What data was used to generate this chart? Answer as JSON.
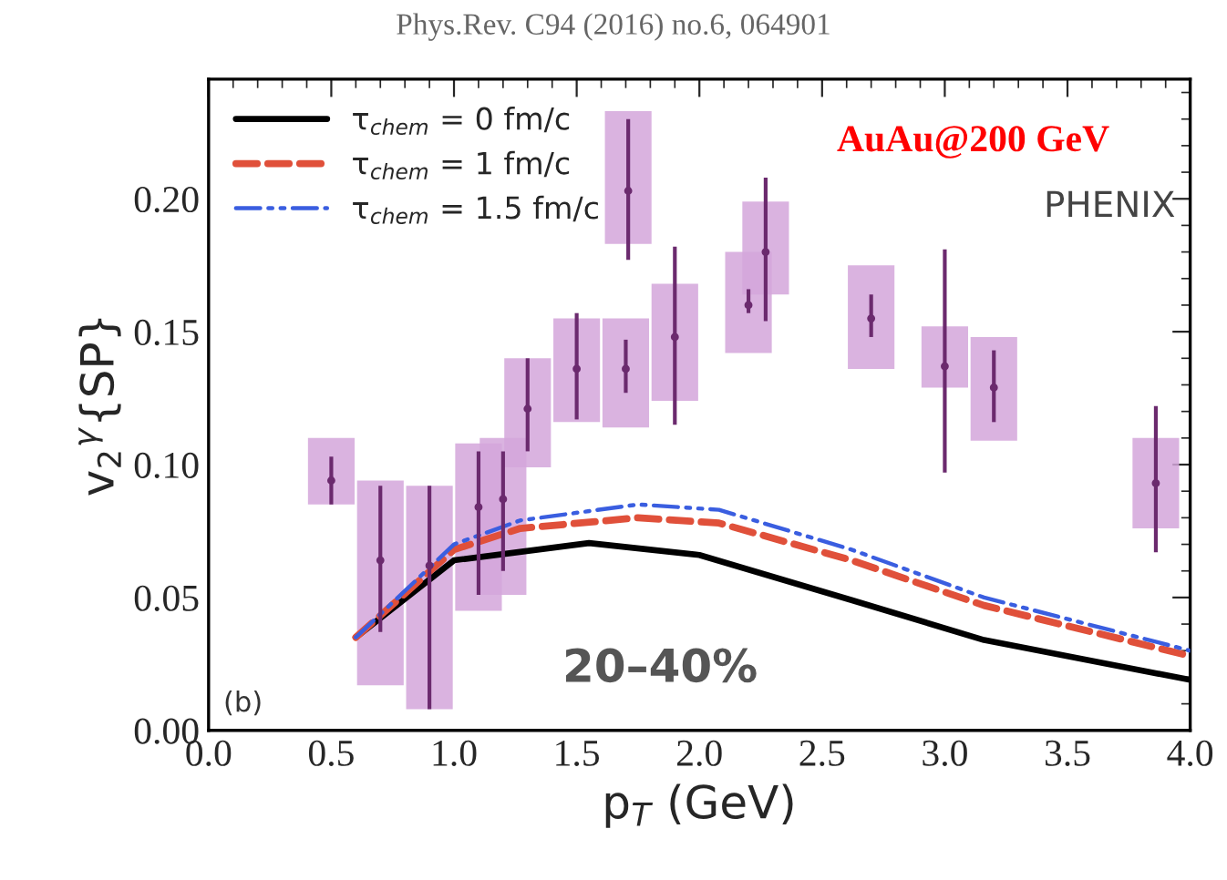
{
  "chart_data": {
    "type": "scatter",
    "xlabel": "p$_{T}$ (GeV)",
    "ylabel": "v$_{2}$$^{γ}${SP}",
    "xlim": [
      0,
      4.0
    ],
    "ylim": [
      0,
      0.245
    ],
    "xticks": [
      {
        "value": 0,
        "label": "0.0"
      },
      0.5,
      {
        "value": 1,
        "label": "1.0"
      },
      1.5,
      {
        "value": 2,
        "label": "2.0"
      },
      2.5,
      {
        "value": 3,
        "label": "3.0"
      },
      3.5,
      {
        "value": 4,
        "label": "4.0"
      }
    ],
    "yticks": [
      {
        "value": 0,
        "label": "0.00"
      },
      0.05,
      {
        "value": 0.1,
        "label": "0.10"
      },
      0.15,
      {
        "value": 0.2,
        "label": "0.20"
      }
    ],
    "legend": "top left",
    "grid": false,
    "marker": "circle",
    "annotations": [
      "Phys.Rev. C94 (2016) no.6, 064901",
      "AuAu@200 GeV",
      "PHENIX",
      "20–40%",
      "(b)"
    ],
    "series": [
      {
        "type": "bar",
        "color": "#d4a6da",
        "x": [
          0.5,
          0.7,
          0.9,
          1.1,
          1.2,
          1.3,
          1.5,
          1.7,
          1.71,
          1.9,
          2.2,
          2.27,
          2.7,
          3.0,
          3.2,
          3.86
        ],
        "base": [
          0.085,
          0.017,
          0.008,
          0.045,
          0.051,
          0.099,
          0.116,
          0.114,
          0.183,
          0.124,
          0.142,
          0.164,
          0.136,
          0.129,
          0.109,
          0.076
        ],
        "values": [
          0.025,
          0.077,
          0.084,
          0.063,
          0.059,
          0.041,
          0.039,
          0.041,
          0.05,
          0.044,
          0.038,
          0.035,
          0.039,
          0.023,
          0.039,
          0.034
        ]
      },
      {
        "color": "#6b2a6e",
        "x": [
          0.5,
          0.7,
          0.9,
          1.1,
          1.2,
          1.3,
          1.5,
          1.7,
          1.71,
          1.9,
          2.2,
          2.27,
          2.7,
          3.0,
          3.2,
          3.86
        ],
        "values": [
          0.094,
          0.064,
          0.062,
          0.084,
          0.087,
          0.121,
          0.136,
          0.136,
          0.203,
          0.148,
          0.16,
          0.18,
          0.155,
          0.137,
          0.129,
          0.093
        ],
        "errors": [
          [
            0.085,
            0.103
          ],
          [
            0.037,
            0.092
          ],
          [
            0.008,
            0.092
          ],
          [
            0.051,
            0.105
          ],
          [
            0.06,
            0.105
          ],
          [
            0.105,
            0.14
          ],
          [
            0.117,
            0.157
          ],
          [
            0.127,
            0.147
          ],
          [
            0.177,
            0.23
          ],
          [
            0.115,
            0.182
          ],
          [
            0.157,
            0.166
          ],
          [
            0.154,
            0.208
          ],
          [
            0.148,
            0.164
          ],
          [
            0.097,
            0.181
          ],
          [
            0.116,
            0.143
          ],
          [
            0.067,
            0.122
          ]
        ]
      },
      {
        "type": "line",
        "name": "τ$_{chem}$ = 0 fm/c",
        "color": "#000000",
        "line_style": "solid",
        "marker": "none",
        "x": [
          0.6,
          1.0,
          1.55,
          2.0,
          2.62,
          3.16,
          4.0
        ],
        "values": [
          0.035,
          0.064,
          0.0705,
          0.066,
          0.049,
          0.034,
          0.019
        ]
      },
      {
        "type": "line",
        "name": "τ$_{chem}$ = 1 fm/c",
        "color": "#e0503a",
        "line_style": "dashed",
        "marker": "none",
        "x": [
          0.6,
          1.0,
          1.27,
          1.75,
          2.08,
          2.62,
          3.16,
          4.0
        ],
        "values": [
          0.035,
          0.068,
          0.076,
          0.08,
          0.078,
          0.064,
          0.047,
          0.028
        ]
      },
      {
        "type": "line",
        "name": "τ$_{chem}$ = 1.5 fm/c",
        "color": "#3a5ee0",
        "line_style": "dashdot",
        "marker": "none",
        "x": [
          0.6,
          1.0,
          1.27,
          1.75,
          2.08,
          2.62,
          3.16,
          4.0
        ],
        "values": [
          0.035,
          0.07,
          0.079,
          0.085,
          0.083,
          0.068,
          0.05,
          0.03
        ]
      }
    ]
  }
}
